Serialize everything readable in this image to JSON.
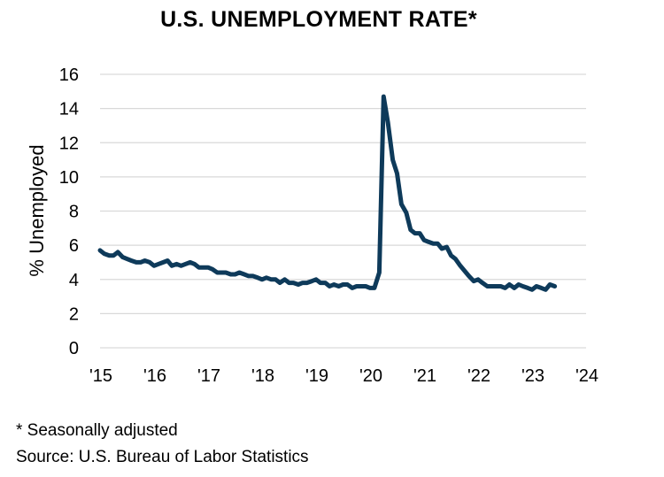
{
  "chart_data": {
    "type": "line",
    "title": "U.S. UNEMPLOYMENT RATE*",
    "xlabel": "",
    "ylabel": "% Unemployed",
    "ylim": [
      0,
      16
    ],
    "yticks": [
      0,
      2,
      4,
      6,
      8,
      10,
      12,
      14,
      16
    ],
    "xlim": [
      2015,
      2024
    ],
    "xticks": [
      2015,
      2016,
      2017,
      2018,
      2019,
      2020,
      2021,
      2022,
      2023,
      2024
    ],
    "xtick_labels": [
      "'15",
      "'16",
      "'17",
      "'18",
      "'19",
      "'20",
      "'21",
      "'22",
      "'23",
      "'24"
    ],
    "grid": true,
    "line_color": "#0e3a5a",
    "series": [
      {
        "name": "Unemployment rate",
        "x": [
          2015.0,
          2015.08,
          2015.17,
          2015.25,
          2015.33,
          2015.42,
          2015.5,
          2015.58,
          2015.67,
          2015.75,
          2015.83,
          2015.92,
          2016.0,
          2016.08,
          2016.17,
          2016.25,
          2016.33,
          2016.42,
          2016.5,
          2016.58,
          2016.67,
          2016.75,
          2016.83,
          2016.92,
          2017.0,
          2017.08,
          2017.17,
          2017.25,
          2017.33,
          2017.42,
          2017.5,
          2017.58,
          2017.67,
          2017.75,
          2017.83,
          2017.92,
          2018.0,
          2018.08,
          2018.17,
          2018.25,
          2018.33,
          2018.42,
          2018.5,
          2018.58,
          2018.67,
          2018.75,
          2018.83,
          2018.92,
          2019.0,
          2019.08,
          2019.17,
          2019.25,
          2019.33,
          2019.42,
          2019.5,
          2019.58,
          2019.67,
          2019.75,
          2019.83,
          2019.92,
          2020.0,
          2020.08,
          2020.17,
          2020.25,
          2020.33,
          2020.42,
          2020.5,
          2020.58,
          2020.67,
          2020.75,
          2020.83,
          2020.92,
          2021.0,
          2021.08,
          2021.17,
          2021.25,
          2021.33,
          2021.42,
          2021.5,
          2021.58,
          2021.67,
          2021.75,
          2021.83,
          2021.92,
          2022.0,
          2022.08,
          2022.17,
          2022.25,
          2022.33,
          2022.42,
          2022.5,
          2022.58,
          2022.67,
          2022.75,
          2022.83,
          2022.92,
          2023.0,
          2023.08,
          2023.17,
          2023.25,
          2023.33,
          2023.42
        ],
        "values": [
          5.7,
          5.5,
          5.4,
          5.4,
          5.6,
          5.3,
          5.2,
          5.1,
          5.0,
          5.0,
          5.1,
          5.0,
          4.8,
          4.9,
          5.0,
          5.1,
          4.8,
          4.9,
          4.8,
          4.9,
          5.0,
          4.9,
          4.7,
          4.7,
          4.7,
          4.6,
          4.4,
          4.4,
          4.4,
          4.3,
          4.3,
          4.4,
          4.3,
          4.2,
          4.2,
          4.1,
          4.0,
          4.1,
          4.0,
          4.0,
          3.8,
          4.0,
          3.8,
          3.8,
          3.7,
          3.8,
          3.8,
          3.9,
          4.0,
          3.8,
          3.8,
          3.6,
          3.7,
          3.6,
          3.7,
          3.7,
          3.5,
          3.6,
          3.6,
          3.6,
          3.5,
          3.5,
          4.4,
          14.7,
          13.2,
          11.0,
          10.2,
          8.4,
          7.9,
          6.9,
          6.7,
          6.7,
          6.3,
          6.2,
          6.1,
          6.1,
          5.8,
          5.9,
          5.4,
          5.2,
          4.8,
          4.5,
          4.2,
          3.9,
          4.0,
          3.8,
          3.6,
          3.6,
          3.6,
          3.6,
          3.5,
          3.7,
          3.5,
          3.7,
          3.6,
          3.5,
          3.4,
          3.6,
          3.5,
          3.4,
          3.7,
          3.6
        ]
      }
    ]
  },
  "footnotes": {
    "seasonal": "* Seasonally adjusted",
    "source": "Source: U.S. Bureau of Labor Statistics"
  }
}
